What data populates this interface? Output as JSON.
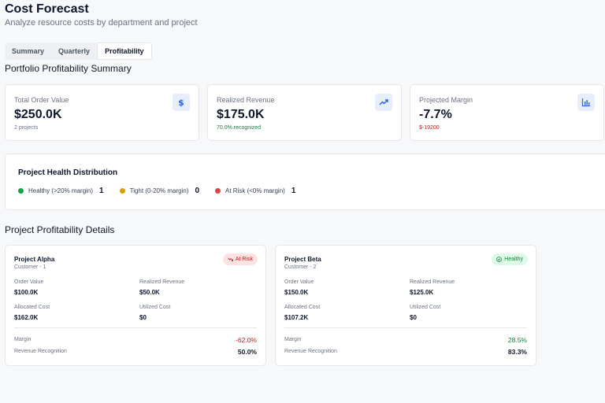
{
  "header": {
    "title": "Cost Forecast",
    "subtitle": "Analyze resource costs by department and project"
  },
  "tabs": [
    {
      "label": "Summary",
      "active": false
    },
    {
      "label": "Quarterly",
      "active": false
    },
    {
      "label": "Profitability",
      "active": true
    }
  ],
  "summary": {
    "title": "Portfolio Profitability Summary",
    "metrics": [
      {
        "label": "Total Order Value",
        "value": "$250.0K",
        "sub": "2 projects",
        "icon": "dollar-icon"
      },
      {
        "label": "Realized Revenue",
        "value": "$175.0K",
        "sub": "70.0% recognized",
        "icon": "trending-up-icon"
      },
      {
        "label": "Projected Margin",
        "value": "-7.7%",
        "sub": "$-19200",
        "icon": "bar-chart-icon"
      }
    ]
  },
  "health": {
    "title": "Project Health Distribution",
    "items": [
      {
        "label": "Healthy (>20% margin)",
        "count": "1",
        "color": "#16a34a"
      },
      {
        "label": "Tight (0-20% margin)",
        "count": "0",
        "color": "#d4a20c"
      },
      {
        "label": "At Risk (<0% margin)",
        "count": "1",
        "color": "#dc4545"
      }
    ]
  },
  "details": {
    "title": "Project Profitability Details",
    "projects": [
      {
        "name": "Project Alpha",
        "customer": "Customer - 1",
        "status": "At Risk",
        "order_value_label": "Order Value",
        "order_value": "$100.0K",
        "realized_revenue_label": "Realized Revenue",
        "realized_revenue": "$50.0K",
        "allocated_cost_label": "Allocated Cost",
        "allocated_cost": "$162.0K",
        "utilized_cost_label": "Utilized Cost",
        "utilized_cost": "$0",
        "margin_label": "Margin",
        "margin": "-62.0%",
        "recognition_label": "Revenue Recognition",
        "recognition": "50.0%"
      },
      {
        "name": "Project Beta",
        "customer": "Customer - 2",
        "status": "Healthy",
        "order_value_label": "Order Value",
        "order_value": "$150.0K",
        "realized_revenue_label": "Realized Revenue",
        "realized_revenue": "$125.0K",
        "allocated_cost_label": "Allocated Cost",
        "allocated_cost": "$107.2K",
        "utilized_cost_label": "Utilized Cost",
        "utilized_cost": "$0",
        "margin_label": "Margin",
        "margin": "28.5%",
        "recognition_label": "Revenue Recognition",
        "recognition": "83.3%"
      }
    ]
  }
}
